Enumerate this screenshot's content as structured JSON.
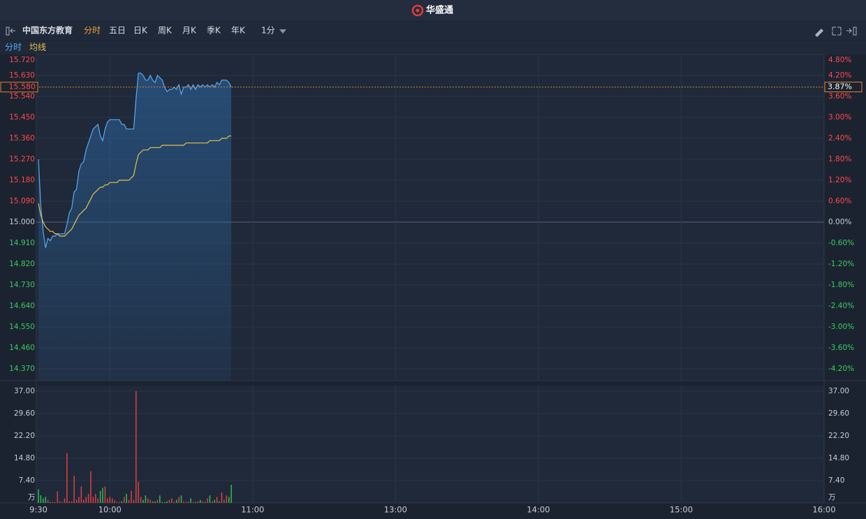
{
  "app_title": "华盛通",
  "toolbar": {
    "stock_name": "中国东方教育",
    "tabs": [
      "分时",
      "五日",
      "日K",
      "周K",
      "月K",
      "季K",
      "年K",
      "1分"
    ]
  },
  "chart_data": [
    {
      "type": "line",
      "x": [
        "9:30",
        "9:31",
        "9:32",
        "9:33",
        "9:34",
        "9:35",
        "9:36",
        "9:37",
        "9:38",
        "9:39",
        "9:40",
        "9:41",
        "9:42",
        "9:43",
        "9:44",
        "9:45",
        "9:46",
        "9:47",
        "9:48",
        "9:49",
        "9:50",
        "9:51",
        "9:52",
        "9:53",
        "9:54",
        "9:55",
        "9:56",
        "9:57",
        "9:58",
        "9:59",
        "10:00",
        "10:01",
        "10:02",
        "10:03",
        "10:04",
        "10:05",
        "10:06",
        "10:07",
        "10:08",
        "10:09",
        "10:10",
        "10:11",
        "10:12",
        "10:13",
        "10:14",
        "10:15",
        "10:16",
        "10:17",
        "10:18",
        "10:19",
        "10:20",
        "10:21",
        "10:22",
        "10:23",
        "10:24",
        "10:25",
        "10:26",
        "10:27",
        "10:28",
        "10:29",
        "10:30",
        "10:31",
        "10:32",
        "10:33",
        "10:34",
        "10:35",
        "10:36",
        "10:37",
        "10:38",
        "10:39",
        "10:40",
        "10:41",
        "10:42",
        "10:43",
        "10:44",
        "10:45",
        "10:46",
        "10:47",
        "10:48",
        "10:49",
        "10:50",
        "10:51"
      ],
      "xlim": [
        "9:30",
        "16:00"
      ],
      "series": [
        {
          "name": "分时",
          "color": "#5aaaf2",
          "values": [
            15.27,
            15.07,
            14.96,
            14.89,
            14.93,
            14.92,
            14.94,
            14.94,
            14.95,
            14.95,
            14.95,
            14.95,
            14.99,
            15.04,
            15.06,
            15.13,
            15.14,
            15.22,
            15.25,
            15.26,
            15.31,
            15.34,
            15.37,
            15.4,
            15.41,
            15.42,
            15.37,
            15.35,
            15.4,
            15.43,
            15.44,
            15.44,
            15.44,
            15.44,
            15.44,
            15.42,
            15.42,
            15.4,
            15.4,
            15.4,
            15.4,
            15.53,
            15.64,
            15.64,
            15.63,
            15.61,
            15.61,
            15.63,
            15.61,
            15.6,
            15.63,
            15.62,
            15.61,
            15.58,
            15.56,
            15.57,
            15.57,
            15.58,
            15.57,
            15.59,
            15.55,
            15.58,
            15.58,
            15.59,
            15.57,
            15.59,
            15.57,
            15.59,
            15.58,
            15.59,
            15.58,
            15.59,
            15.58,
            15.59,
            15.58,
            15.6,
            15.59,
            15.61,
            15.61,
            15.61,
            15.6,
            15.58
          ]
        },
        {
          "name": "均线",
          "color": "#e9c14a",
          "values": [
            15.08,
            15.03,
            15.0,
            14.98,
            14.97,
            14.96,
            14.96,
            14.95,
            14.95,
            14.94,
            14.94,
            14.94,
            14.95,
            14.96,
            14.97,
            14.99,
            15.01,
            15.03,
            15.04,
            15.05,
            15.06,
            15.08,
            15.1,
            15.12,
            15.13,
            15.14,
            15.15,
            15.15,
            15.16,
            15.16,
            15.17,
            15.17,
            15.17,
            15.17,
            15.18,
            15.18,
            15.18,
            15.18,
            15.18,
            15.19,
            15.2,
            15.25,
            15.29,
            15.3,
            15.31,
            15.31,
            15.31,
            15.32,
            15.32,
            15.32,
            15.32,
            15.32,
            15.33,
            15.33,
            15.33,
            15.33,
            15.33,
            15.33,
            15.33,
            15.33,
            15.33,
            15.33,
            15.34,
            15.34,
            15.34,
            15.34,
            15.34,
            15.34,
            15.34,
            15.34,
            15.34,
            15.34,
            15.35,
            15.35,
            15.35,
            15.35,
            15.35,
            15.36,
            15.36,
            15.36,
            15.37,
            15.37
          ]
        }
      ],
      "ylim": [
        14.37,
        15.72
      ],
      "yticks": [
        {
          "value": 15.72,
          "label": "15.720"
        },
        {
          "value": 15.63,
          "label": "15.630"
        },
        {
          "value": 15.54,
          "label": "15.540"
        },
        {
          "value": 15.45,
          "label": "15.450"
        },
        {
          "value": 15.36,
          "label": "15.360"
        },
        {
          "value": 15.27,
          "label": "15.270"
        },
        {
          "value": 15.18,
          "label": "15.180"
        },
        {
          "value": 15.09,
          "label": "15.090"
        },
        {
          "value": 15,
          "label": "15.000"
        },
        {
          "value": 14.91,
          "label": "14.910"
        },
        {
          "value": 14.82,
          "label": "14.820"
        },
        {
          "value": 14.73,
          "label": "14.730"
        },
        {
          "value": 14.64,
          "label": "14.640"
        },
        {
          "value": 14.55,
          "label": "14.550"
        },
        {
          "value": 14.46,
          "label": "14.460"
        },
        {
          "value": 14.37,
          "label": "14.370"
        }
      ],
      "y2lim": [
        -4.2,
        4.8
      ],
      "y2ticks": [
        {
          "value": 4.8,
          "label": "4.80%"
        },
        {
          "value": 4.2,
          "label": "4.20%"
        },
        {
          "value": 3.6,
          "label": "3.60%"
        },
        {
          "value": 3,
          "label": "3.00%"
        },
        {
          "value": 2.4,
          "label": "2.40%"
        },
        {
          "value": 1.8,
          "label": "1.80%"
        },
        {
          "value": 1.2,
          "label": "1.20%"
        },
        {
          "value": 0.6,
          "label": "0.60%"
        },
        {
          "value": 0,
          "label": "0.00%"
        },
        {
          "value": -0.6,
          "label": "-0.60%"
        },
        {
          "value": -1.2,
          "label": "-1.20%"
        },
        {
          "value": -1.8,
          "label": "-1.80%"
        },
        {
          "value": -2.4,
          "label": "-2.40%"
        },
        {
          "value": -3,
          "label": "-3.00%"
        },
        {
          "value": -3.6,
          "label": "-3.60%"
        },
        {
          "value": -4.2,
          "label": "-4.20%"
        }
      ],
      "marker": {
        "value": 15.58,
        "label": "15.580"
      },
      "marker_pct": {
        "value": 3.87,
        "label": "3.87%"
      },
      "grid": true
    },
    {
      "type": "bar",
      "x": [
        "9:30",
        "9:31",
        "9:32",
        "9:33",
        "9:34",
        "9:35",
        "9:36",
        "9:37",
        "9:38",
        "9:39",
        "9:40",
        "9:41",
        "9:42",
        "9:43",
        "9:44",
        "9:45",
        "9:46",
        "9:47",
        "9:48",
        "9:49",
        "9:50",
        "9:51",
        "9:52",
        "9:53",
        "9:54",
        "9:55",
        "9:56",
        "9:57",
        "9:58",
        "9:59",
        "10:00",
        "10:01",
        "10:02",
        "10:03",
        "10:04",
        "10:05",
        "10:06",
        "10:07",
        "10:08",
        "10:09",
        "10:10",
        "10:11",
        "10:12",
        "10:13",
        "10:14",
        "10:15",
        "10:16",
        "10:17",
        "10:18",
        "10:19",
        "10:20",
        "10:21",
        "10:22",
        "10:23",
        "10:24",
        "10:25",
        "10:26",
        "10:27",
        "10:28",
        "10:29",
        "10:30",
        "10:31",
        "10:32",
        "10:33",
        "10:34",
        "10:35",
        "10:36",
        "10:37",
        "10:38",
        "10:39",
        "10:40",
        "10:41",
        "10:42",
        "10:43",
        "10:44",
        "10:45",
        "10:46",
        "10:47",
        "10:48",
        "10:49",
        "10:50",
        "10:51"
      ],
      "xlim": [
        "9:30",
        "16:00"
      ],
      "xticks": [
        "9:30",
        "10:00",
        "11:00",
        "13:00",
        "14:00",
        "15:00",
        "16:00"
      ],
      "values": [
        4.5,
        2.5,
        1.5,
        2,
        1,
        0.3,
        0.3,
        0.3,
        3.8,
        0.5,
        0.3,
        1.5,
        16.5,
        0.5,
        0.5,
        9,
        1,
        2,
        5.5,
        1,
        2,
        3,
        10.5,
        2,
        3,
        1.5,
        4,
        5,
        5.5,
        1.5,
        2,
        1.5,
        0.8,
        0.3,
        0.3,
        0.5,
        2,
        3,
        1,
        4,
        1,
        37,
        7,
        2,
        1,
        2.5,
        1.5,
        1,
        0.5,
        0.5,
        1,
        2.5,
        0.3,
        0.3,
        0.5,
        1,
        1.5,
        0.3,
        1,
        2,
        2.5,
        0.5,
        0.3,
        0.5,
        1.5,
        0.3,
        0.3,
        0.5,
        1,
        0.5,
        0.3,
        1.5,
        2.5,
        0.5,
        1,
        2,
        0.5,
        3.5,
        1,
        2.5,
        2,
        6
      ],
      "ylim": [
        0,
        37
      ],
      "yticks": [
        {
          "value": 37,
          "label": "37.00"
        },
        {
          "value": 29.6,
          "label": "29.60"
        },
        {
          "value": 22.2,
          "label": "22.20"
        },
        {
          "value": 14.8,
          "label": "14.80"
        },
        {
          "value": 7.4,
          "label": "7.40"
        }
      ],
      "unit": "万",
      "up_color": "#e0403f",
      "down_color": "#2fbf4f",
      "grid": true
    }
  ]
}
